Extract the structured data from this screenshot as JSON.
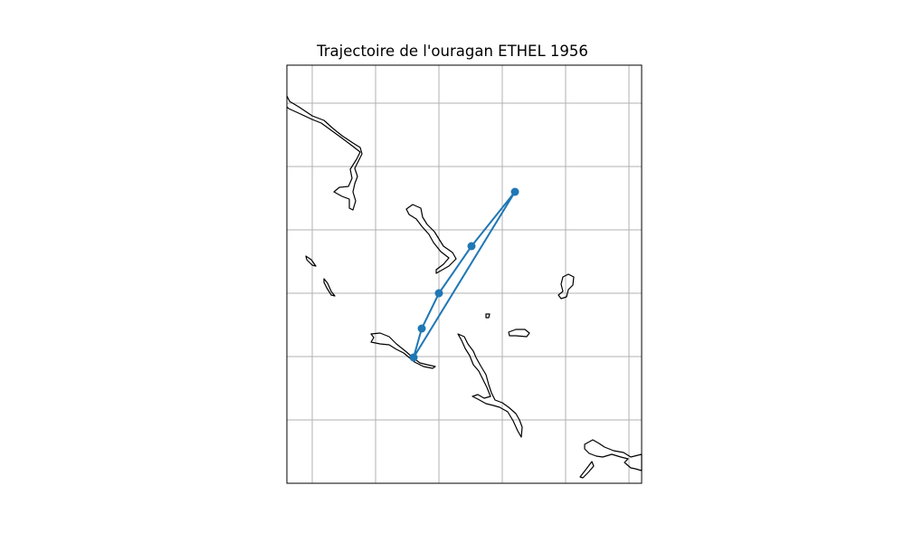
{
  "title": "Trajectoire de l'ouragan ETHEL 1956",
  "colors": {
    "track": "#1f77b4",
    "coastline": "#000000",
    "grid": "#b0b0b0",
    "frame": "#000000",
    "background": "#ffffff"
  },
  "map": {
    "projection": "PlateCarree",
    "gridlines": true,
    "tick_labels": false
  },
  "track": {
    "name": "ETHEL 1956",
    "marker": "circle",
    "point_count": 7
  }
}
